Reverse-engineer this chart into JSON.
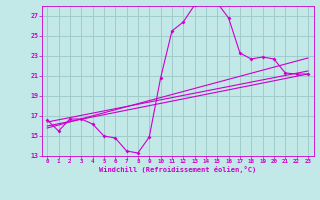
{
  "xlabel": "Windchill (Refroidissement éolien,°C)",
  "bg_color": "#c2e8e8",
  "grid_color": "#a0cccc",
  "line_color": "#cc00cc",
  "xlim": [
    -0.5,
    23.5
  ],
  "ylim": [
    13,
    28
  ],
  "yticks": [
    13,
    15,
    17,
    19,
    21,
    23,
    25,
    27
  ],
  "xticks": [
    0,
    1,
    2,
    3,
    4,
    5,
    6,
    7,
    8,
    9,
    10,
    11,
    12,
    13,
    14,
    15,
    16,
    17,
    18,
    19,
    20,
    21,
    22,
    23
  ],
  "main_x": [
    0,
    1,
    2,
    3,
    4,
    5,
    6,
    7,
    8,
    9,
    10,
    11,
    12,
    13,
    14,
    15,
    16,
    17,
    18,
    19,
    20,
    21,
    22,
    23
  ],
  "main_y": [
    16.6,
    15.5,
    16.7,
    16.7,
    16.2,
    15.0,
    14.8,
    13.5,
    13.3,
    14.9,
    20.8,
    25.5,
    26.4,
    28.1,
    28.3,
    28.3,
    26.8,
    23.3,
    22.7,
    22.9,
    22.7,
    21.3,
    21.2,
    21.2
  ],
  "line2_x": [
    0,
    23
  ],
  "line2_y": [
    15.8,
    22.8
  ],
  "line3_x": [
    0,
    23
  ],
  "line3_y": [
    16.4,
    21.5
  ],
  "line4_x": [
    0,
    23
  ],
  "line4_y": [
    16.0,
    21.2
  ]
}
